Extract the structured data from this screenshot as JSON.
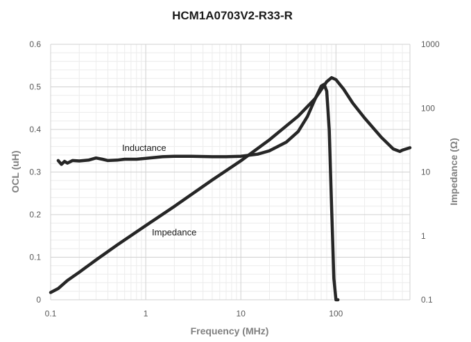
{
  "chart_data": {
    "type": "line",
    "title": "HCM1A0703V2-R33-R",
    "xlabel": "Frequency (MHz)",
    "ylabel": "OCL (uH)",
    "y2label": "Impedance (Ω)",
    "x_scale": "log",
    "xlim": [
      0.1,
      600
    ],
    "x_ticks": [
      "0.1",
      "1",
      "10",
      "100"
    ],
    "ylim": [
      0,
      0.6
    ],
    "y_ticks": [
      "0",
      "0.1",
      "0.2",
      "0.3",
      "0.4",
      "0.5",
      "0.6"
    ],
    "y2_scale": "log",
    "y2lim": [
      0.1,
      1000
    ],
    "y2_ticks": [
      "0.1",
      "1",
      "10",
      "100",
      "1000"
    ],
    "grid": true,
    "legend": "none",
    "annotations": [
      "Inductance",
      "Impedance"
    ],
    "series": [
      {
        "axis": "left",
        "x": [
          0.12,
          0.13,
          0.14,
          0.15,
          0.17,
          0.2,
          0.25,
          0.3,
          0.35,
          0.4,
          0.5,
          0.6,
          0.8,
          1,
          1.5,
          2,
          3,
          5,
          7,
          10,
          15,
          20,
          30,
          40,
          50,
          60,
          70,
          75,
          80,
          85,
          90,
          95,
          100,
          105
        ],
        "y": [
          0.327,
          0.318,
          0.325,
          0.321,
          0.327,
          0.326,
          0.328,
          0.333,
          0.33,
          0.327,
          0.328,
          0.33,
          0.33,
          0.332,
          0.336,
          0.337,
          0.337,
          0.336,
          0.336,
          0.337,
          0.342,
          0.35,
          0.37,
          0.395,
          0.43,
          0.47,
          0.502,
          0.506,
          0.49,
          0.4,
          0.22,
          0.05,
          -0.02,
          -0.05
        ]
      },
      {
        "axis": "right",
        "x": [
          0.1,
          0.12,
          0.15,
          0.2,
          0.3,
          0.5,
          1,
          2,
          5,
          10,
          20,
          40,
          60,
          80,
          90,
          100,
          120,
          150,
          200,
          300,
          400,
          470,
          500,
          600
        ],
        "y": [
          0.13,
          0.15,
          0.2,
          0.27,
          0.42,
          0.72,
          1.45,
          2.9,
          7.5,
          15,
          32,
          75,
          140,
          260,
          300,
          280,
          200,
          120,
          70,
          35,
          23,
          21,
          22,
          24
        ]
      }
    ]
  }
}
